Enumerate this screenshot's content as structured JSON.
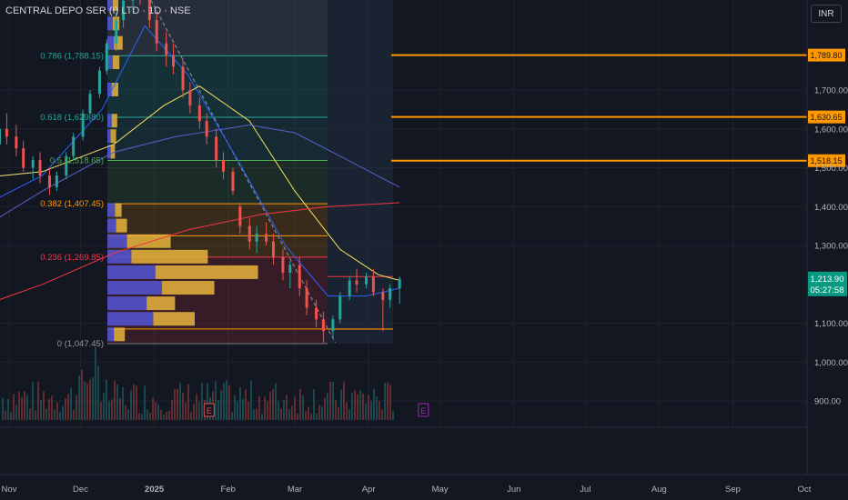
{
  "header": {
    "symbol_title": "CENTRAL DEPO SER (I) LTD · 1D · NSE",
    "currency_label": "INR"
  },
  "price_badge": {
    "price": "1,213.90",
    "countdown": "05:27:58"
  },
  "colors": {
    "background": "#131722",
    "up": "#26a69a",
    "down": "#ef5350",
    "level_line": "#ff9800",
    "fib_0786": "#26a69a",
    "fib_0618": "#26a69a",
    "fib_05": "#4caf50",
    "fib_0382": "#ff9800",
    "fib_0236": "#f23645",
    "ma_fast": "#2962ff",
    "ma_mid": "#f5e663",
    "ma_slow": "#5b5fc7",
    "ma_long": "#f23645",
    "vp_buy": "#5355d6",
    "vp_sell": "#e6b43c"
  },
  "chart_data": {
    "type": "candlestick",
    "y_axis": {
      "ylim": [
        850,
        2050
      ],
      "ticks": [
        {
          "value": 1700,
          "label": "1,700.00"
        },
        {
          "value": 1600,
          "label": "1,600.00"
        },
        {
          "value": 1500,
          "label": "1,500.00"
        },
        {
          "value": 1400,
          "label": "1,400.00"
        },
        {
          "value": 1300,
          "label": "1,300.00"
        },
        {
          "value": 1100,
          "label": "1,100.00"
        },
        {
          "value": 1000,
          "label": "1,000.00"
        },
        {
          "value": 900,
          "label": "900.00"
        }
      ]
    },
    "x_axis": {
      "ticks": [
        {
          "label": "Nov",
          "date": "2024-11-01"
        },
        {
          "label": "Dec",
          "date": "2024-12-01"
        },
        {
          "label": "2025",
          "date": "2025-01-01",
          "bold": true
        },
        {
          "label": "Feb",
          "date": "2025-02-01"
        },
        {
          "label": "Mar",
          "date": "2025-03-01"
        },
        {
          "label": "Apr",
          "date": "2025-04-01"
        },
        {
          "label": "May",
          "date": "2025-05-01"
        },
        {
          "label": "Jun",
          "date": "2025-06-01"
        },
        {
          "label": "Jul",
          "date": "2025-07-01"
        },
        {
          "label": "Aug",
          "date": "2025-08-01"
        },
        {
          "label": "Sep",
          "date": "2025-09-01"
        },
        {
          "label": "Oct",
          "date": "2025-10-01"
        }
      ]
    },
    "fib_levels": [
      {
        "ratio": 0.786,
        "label": "0.786 (1,788.15)",
        "price": 1788.15,
        "color_key": "fib_0786"
      },
      {
        "ratio": 0.618,
        "label": "0.618 (1,629.80)",
        "price": 1629.8,
        "color_key": "fib_0618"
      },
      {
        "ratio": 0.5,
        "label": "0.5 (1,518.65)",
        "price": 1518.65,
        "color_key": "fib_05"
      },
      {
        "ratio": 0.382,
        "label": "0.382 (1,407.45)",
        "price": 1407.45,
        "color_key": "fib_0382"
      },
      {
        "ratio": 0.236,
        "label": "0.236 (1,269.85)",
        "price": 1269.85,
        "color_key": "fib_0236"
      },
      {
        "ratio": 0,
        "label": "0 (1,047.45)",
        "price": 1047.45,
        "color_key": "fib_0"
      }
    ],
    "horizontal_levels": [
      {
        "price": 1789.8,
        "label": "1,789.80"
      },
      {
        "price": 1630.65,
        "label": "1,630.65"
      },
      {
        "price": 1518.15,
        "label": "1,518.15"
      }
    ],
    "last_price": 1213.9,
    "earnings_markers": [
      {
        "label": "E",
        "date": "2025-01-24"
      },
      {
        "label": "E",
        "date": "2025-04-24"
      }
    ],
    "candles": [
      [
        "2024-10-14",
        1420,
        1450,
        1400,
        1440
      ],
      [
        "2024-10-17",
        1440,
        1470,
        1420,
        1455
      ],
      [
        "2024-10-21",
        1455,
        1490,
        1430,
        1470
      ],
      [
        "2024-10-24",
        1470,
        1580,
        1460,
        1560
      ],
      [
        "2024-10-28",
        1560,
        1620,
        1540,
        1600
      ],
      [
        "2024-10-31",
        1600,
        1640,
        1560,
        1580
      ],
      [
        "2024-11-04",
        1580,
        1610,
        1530,
        1550
      ],
      [
        "2024-11-07",
        1550,
        1570,
        1490,
        1500
      ],
      [
        "2024-11-11",
        1500,
        1530,
        1470,
        1520
      ],
      [
        "2024-11-14",
        1520,
        1540,
        1460,
        1480
      ],
      [
        "2024-11-18",
        1480,
        1500,
        1430,
        1450
      ],
      [
        "2024-11-21",
        1450,
        1490,
        1440,
        1480
      ],
      [
        "2024-11-25",
        1480,
        1540,
        1470,
        1530
      ],
      [
        "2024-11-28",
        1530,
        1590,
        1520,
        1580
      ],
      [
        "2024-12-02",
        1580,
        1650,
        1570,
        1640
      ],
      [
        "2024-12-05",
        1640,
        1700,
        1620,
        1690
      ],
      [
        "2024-12-09",
        1690,
        1760,
        1680,
        1750
      ],
      [
        "2024-12-12",
        1750,
        1830,
        1740,
        1820
      ],
      [
        "2024-12-16",
        1820,
        1900,
        1800,
        1880
      ],
      [
        "2024-12-19",
        1880,
        1950,
        1860,
        1930
      ],
      [
        "2024-12-23",
        1930,
        1990,
        1900,
        1960
      ],
      [
        "2024-12-26",
        1960,
        2010,
        1920,
        1940
      ],
      [
        "2024-12-30",
        1940,
        1960,
        1860,
        1880
      ],
      [
        "2025-01-02",
        1880,
        1900,
        1800,
        1820
      ],
      [
        "2025-01-06",
        1820,
        1850,
        1760,
        1790
      ],
      [
        "2025-01-09",
        1790,
        1820,
        1740,
        1760
      ],
      [
        "2025-01-13",
        1760,
        1780,
        1680,
        1700
      ],
      [
        "2025-01-16",
        1700,
        1720,
        1640,
        1660
      ],
      [
        "2025-01-20",
        1660,
        1680,
        1600,
        1620
      ],
      [
        "2025-01-23",
        1620,
        1640,
        1560,
        1580
      ],
      [
        "2025-01-27",
        1580,
        1600,
        1500,
        1520
      ],
      [
        "2025-01-30",
        1520,
        1540,
        1470,
        1490
      ],
      [
        "2025-02-03",
        1490,
        1500,
        1430,
        1440
      ],
      [
        "2025-02-06",
        1400,
        1410,
        1330,
        1350
      ],
      [
        "2025-02-10",
        1350,
        1370,
        1290,
        1310
      ],
      [
        "2025-02-13",
        1310,
        1350,
        1280,
        1330
      ],
      [
        "2025-02-17",
        1330,
        1360,
        1300,
        1310
      ],
      [
        "2025-02-20",
        1310,
        1330,
        1250,
        1270
      ],
      [
        "2025-02-24",
        1270,
        1290,
        1210,
        1230
      ],
      [
        "2025-02-27",
        1230,
        1260,
        1190,
        1250
      ],
      [
        "2025-03-03",
        1250,
        1270,
        1170,
        1190
      ],
      [
        "2025-03-06",
        1190,
        1210,
        1120,
        1140
      ],
      [
        "2025-03-10",
        1140,
        1160,
        1090,
        1110
      ],
      [
        "2025-03-13",
        1110,
        1130,
        1050,
        1080
      ],
      [
        "2025-03-17",
        1080,
        1120,
        1060,
        1110
      ],
      [
        "2025-03-20",
        1110,
        1180,
        1100,
        1170
      ],
      [
        "2025-03-24",
        1170,
        1220,
        1160,
        1210
      ],
      [
        "2025-03-27",
        1210,
        1240,
        1180,
        1200
      ],
      [
        "2025-03-31",
        1200,
        1230,
        1190,
        1220
      ],
      [
        "2025-04-03",
        1220,
        1240,
        1170,
        1180
      ],
      [
        "2025-04-07",
        1180,
        1190,
        1080,
        1160
      ],
      [
        "2025-04-10",
        1160,
        1200,
        1140,
        1190
      ],
      [
        "2025-04-14",
        1190,
        1220,
        1150,
        1214
      ]
    ],
    "moving_averages": [
      {
        "color_key": "ma_fast",
        "points": [
          [
            "2024-10-14",
            1380
          ],
          [
            "2024-11-15",
            1480
          ],
          [
            "2024-12-10",
            1650
          ],
          [
            "2024-12-28",
            1865
          ],
          [
            "2025-01-15",
            1740
          ],
          [
            "2025-02-05",
            1520
          ],
          [
            "2025-02-25",
            1300
          ],
          [
            "2025-03-15",
            1170
          ],
          [
            "2025-03-31",
            1170
          ],
          [
            "2025-04-14",
            1190
          ]
        ]
      },
      {
        "color_key": "ma_mid",
        "points": [
          [
            "2024-10-14",
            1470
          ],
          [
            "2024-11-15",
            1490
          ],
          [
            "2024-12-15",
            1560
          ],
          [
            "2025-01-05",
            1660
          ],
          [
            "2025-01-20",
            1710
          ],
          [
            "2025-02-10",
            1620
          ],
          [
            "2025-03-01",
            1440
          ],
          [
            "2025-03-20",
            1290
          ],
          [
            "2025-04-05",
            1225
          ],
          [
            "2025-04-14",
            1210
          ]
        ]
      },
      {
        "color_key": "ma_slow",
        "points": [
          [
            "2024-10-14",
            1320
          ],
          [
            "2024-11-15",
            1440
          ],
          [
            "2024-12-15",
            1540
          ],
          [
            "2025-01-10",
            1580
          ],
          [
            "2025-02-10",
            1610
          ],
          [
            "2025-03-01",
            1590
          ],
          [
            "2025-03-20",
            1530
          ],
          [
            "2025-04-14",
            1450
          ]
        ]
      },
      {
        "color_key": "ma_long",
        "points": [
          [
            "2024-10-14",
            1130
          ],
          [
            "2024-11-15",
            1200
          ],
          [
            "2024-12-15",
            1280
          ],
          [
            "2025-01-15",
            1340
          ],
          [
            "2025-02-15",
            1380
          ],
          [
            "2025-03-15",
            1400
          ],
          [
            "2025-04-14",
            1410
          ]
        ]
      }
    ],
    "volume_profile": [
      [
        1070,
        0.06,
        0.1
      ],
      [
        1110,
        0.42,
        0.38
      ],
      [
        1150,
        0.36,
        0.26
      ],
      [
        1190,
        0.5,
        0.48
      ],
      [
        1230,
        0.44,
        0.94
      ],
      [
        1270,
        0.22,
        0.7
      ],
      [
        1310,
        0.18,
        0.4
      ],
      [
        1350,
        0.08,
        0.1
      ],
      [
        1390,
        0.07,
        0.06
      ],
      [
        1540,
        0.03,
        0.04
      ],
      [
        1580,
        0.03,
        0.05
      ],
      [
        1620,
        0.04,
        0.05
      ],
      [
        1700,
        0.04,
        0.06
      ],
      [
        1770,
        0.05,
        0.06
      ],
      [
        1820,
        0.06,
        0.08
      ],
      [
        1870,
        0.05,
        0.06
      ],
      [
        1920,
        0.05,
        0.05
      ]
    ]
  }
}
